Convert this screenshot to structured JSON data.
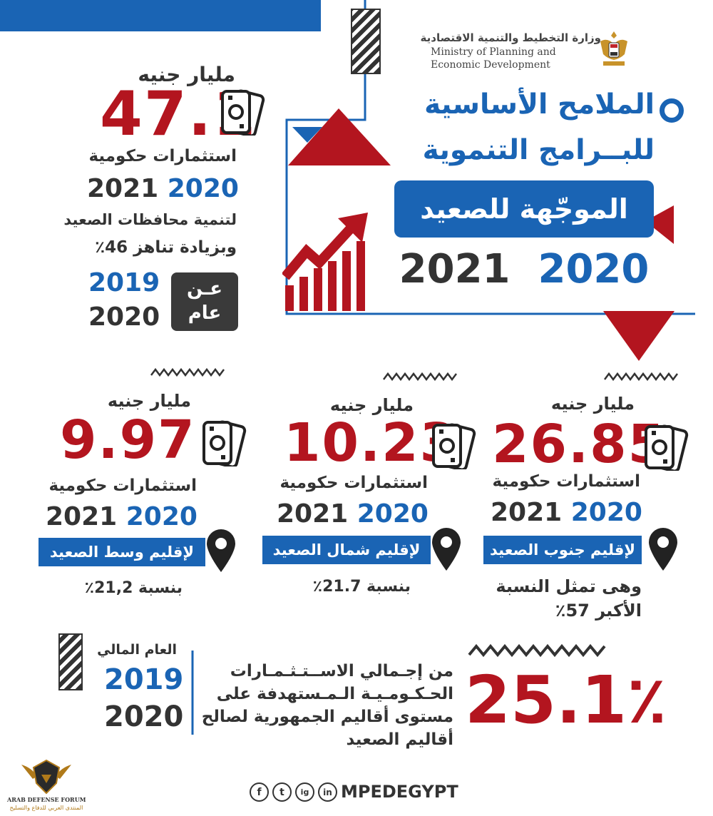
{
  "ministry": {
    "name_ar": "وزارة التخطيط والتنمية الاقتصادية",
    "name_en": "Ministry of Planning and Economic Development"
  },
  "title": {
    "line1": "الملامح الأساسية",
    "line2": "للبــرامج التنموية",
    "highlight": "الموجّهة للصعيد",
    "year_a": "2020",
    "year_b": "2021"
  },
  "total": {
    "unit": "مليار جنيه",
    "value": "47.1",
    "label": "استثمارات حكومية",
    "year_a": "2020",
    "year_b": "2021",
    "purpose": "لتنمية محافظات الصعيد",
    "increase": "وبزيادة تناهز 46٪",
    "badge_line1": "عـن",
    "badge_line2": "عام",
    "base_year_a": "2019",
    "base_year_b": "2020"
  },
  "regions": [
    {
      "unit": "مليار جنيه",
      "value": "26.85",
      "label": "استثمارات حكومية",
      "year_a": "2020",
      "year_b": "2021",
      "name": "لإقليم جنوب الصعيد",
      "note_line1": "وهى تمثل النسبة",
      "note_line2": "الأكبر 57٪"
    },
    {
      "unit": "مليار جنيه",
      "value": "10.23",
      "label": "استثمارات حكومية",
      "year_a": "2020",
      "year_b": "2021",
      "name": "لإقليم شمال الصعيد",
      "share": "بنسبة 21.7٪"
    },
    {
      "unit": "مليار جنيه",
      "value": "9.97",
      "label": "استثمارات حكومية",
      "year_a": "2020",
      "year_b": "2021",
      "name": "لإقليم وسط الصعيد",
      "share": "بنسبة 21,2٪"
    }
  ],
  "summary": {
    "percent": "25.1٪",
    "line1": "من إجـمالي الاســتـثـمـارات",
    "line2": "الحـكـومـيـة الـمـستهدفة على",
    "line3": "مستوى أقاليم الجمهورية لصالح",
    "line4": "أقاليم الصعيد",
    "fy_label": "العام المالي",
    "fy_year_a": "2019",
    "fy_year_b": "2020"
  },
  "footer": {
    "handle": "MPEDEGYPT",
    "social": [
      "f",
      "t",
      "ig",
      "in"
    ],
    "logo_name": "ARAB DEFENSE FORUM",
    "logo_sub": "المنتدى العربي للدفاع والتسليح"
  },
  "colors": {
    "blue": "#1a64b4",
    "red": "#b3151f",
    "dark": "#333333"
  },
  "icons": [
    "money-icon",
    "location-pin-icon",
    "growth-chart-icon",
    "eagle-emblem-icon",
    "wave-icon"
  ]
}
